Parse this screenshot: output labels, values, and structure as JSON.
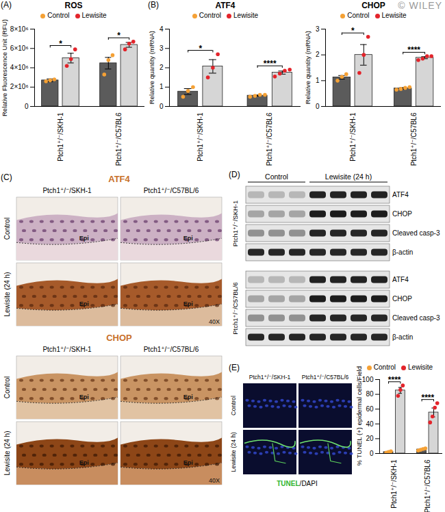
{
  "watermark": "© WILEY",
  "chart_data": [
    {
      "type": "bar",
      "panel": "(A)",
      "title": "ROS",
      "ylabel": "Relative Fluorescence Unit (RFU)",
      "categories": [
        "Ptch1⁺/⁻/SKH-1",
        "Ptch1⁺/⁻/C57BL6"
      ],
      "series": [
        {
          "name": "Control",
          "color": "#f5a135",
          "values": [
            2700000,
            4470000
          ],
          "error": [
            150000,
            600000
          ],
          "points": [
            [
              2600000,
              2700000,
              2800000
            ],
            [
              3300000,
              4800000,
              5300000
            ]
          ]
        },
        {
          "name": "Lewisite",
          "color": "#e3242b",
          "values": [
            5000000,
            6370000
          ],
          "error": [
            500000,
            250000
          ],
          "points": [
            [
              4200000,
              4900000,
              5900000
            ],
            [
              5900000,
              6500000,
              6700000
            ]
          ]
        }
      ],
      "significance": [
        "*",
        "*"
      ],
      "ylim": [
        0,
        8000000
      ],
      "yticks": [
        0,
        {
          "value": 2000000,
          "label": "2×10⁶"
        },
        {
          "value": 4000000,
          "label": "4×10⁶"
        },
        {
          "value": 6000000,
          "label": "6×10⁶"
        },
        {
          "value": 8000000,
          "label": "8×10⁶"
        }
      ],
      "grid": false,
      "legend": "top"
    },
    {
      "type": "bar",
      "panel": "(B)",
      "title": "ATF4",
      "ylabel": "Relative quantity (mRNA)",
      "categories": [
        "Ptch1⁺/⁻/SKH-1",
        "Ptch1⁺/⁻/C57BL6"
      ],
      "series": [
        {
          "name": "Control",
          "color": "#f5a135",
          "values": [
            0.77,
            0.56
          ],
          "error": [
            0.15,
            0.03
          ],
          "points": [
            [
              0.5,
              0.8,
              1.0
            ],
            [
              0.5,
              0.55,
              0.6,
              0.6
            ]
          ]
        },
        {
          "name": "Lewisite",
          "color": "#e3242b",
          "values": [
            2.07,
            1.75
          ],
          "error": [
            0.35,
            0.08
          ],
          "points": [
            [
              1.5,
              2.0,
              2.7
            ],
            [
              1.55,
              1.7,
              1.85,
              1.9
            ]
          ]
        }
      ],
      "significance": [
        "*",
        "****"
      ],
      "ylim": [
        0,
        4
      ],
      "yticks": [
        0,
        1,
        2,
        3,
        4
      ],
      "grid": false,
      "legend": "top"
    },
    {
      "type": "bar",
      "title": "CHOP",
      "ylabel": "Relative quantity (mRNA)",
      "categories": [
        "Ptch1⁺/⁻/SKH-1",
        "Ptch1⁺/⁻/C57BL6"
      ],
      "series": [
        {
          "name": "Control",
          "color": "#f5a135",
          "values": [
            1.13,
            0.7
          ],
          "error": [
            0.07,
            0.03
          ],
          "points": [
            [
              1.0,
              1.15,
              1.25
            ],
            [
              0.65,
              0.68,
              0.72,
              0.75
            ]
          ]
        },
        {
          "name": "Lewisite",
          "color": "#e3242b",
          "values": [
            2.0,
            1.89
          ],
          "error": [
            0.4,
            0.04
          ],
          "points": [
            [
              1.3,
              2.0,
              2.7
            ],
            [
              1.8,
              1.85,
              1.95,
              1.95
            ]
          ]
        }
      ],
      "significance": [
        "*",
        "****"
      ],
      "ylim": [
        0,
        3
      ],
      "yticks": [
        0,
        1,
        2,
        3
      ],
      "grid": false,
      "legend": "top"
    },
    {
      "type": "bar",
      "ylabel": "% TUNEL (+) epidermal cells/Field",
      "categories": [
        "Ptch1⁺/⁻/SKH-1",
        "Ptch1⁺/⁻/C57BL6"
      ],
      "series": [
        {
          "name": "Control",
          "color": "#f5a135",
          "values": [
            2,
            5.5
          ],
          "error": [
            0.6,
            0.8
          ],
          "points": [
            [
              1,
              2,
              3
            ],
            [
              4,
              5,
              6,
              7
            ]
          ]
        },
        {
          "name": "Lewisite",
          "color": "#e3242b",
          "values": [
            85.3,
            55.5
          ],
          "error": [
            4,
            6
          ],
          "points": [
            [
              78,
              86,
              92
            ],
            [
              42,
              50,
              62,
              68
            ]
          ]
        }
      ],
      "significance": [
        "****",
        "****"
      ],
      "ylim": [
        0,
        100
      ],
      "yticks": [
        0,
        20,
        40,
        60,
        80,
        100
      ],
      "grid": false,
      "legend": "top"
    }
  ],
  "micrographs": {
    "panel": "(C)",
    "stains": [
      "ATF4",
      "CHOP"
    ],
    "columns": [
      "Ptch1⁺/⁻/SKH-1",
      "Ptch1⁺/⁻/C57BL/6"
    ],
    "rows": [
      "Control",
      "Lewisite (24 h)"
    ],
    "region_label": "Epi",
    "magnification": "40X"
  },
  "blots": {
    "panel": "(D)",
    "groups": [
      "Control",
      "Lewisite (24 h)"
    ],
    "strains": [
      "Ptch1⁺/⁻/SKH-1",
      "Ptch1⁺/⁻/C57BL/6"
    ],
    "proteins": [
      "ATF4",
      "CHOP",
      "Cleaved casp-3",
      "β-actin"
    ]
  },
  "tunel": {
    "panel": "(E)",
    "columns": [
      "Ptch1⁺/⁻/SKH-1",
      "Ptch1⁺/⁻/C57BL/6"
    ],
    "rows": [
      "Control",
      "Lewisite (24 h)"
    ],
    "stain": "TUNEL",
    "counterstain": "/DAPI"
  }
}
